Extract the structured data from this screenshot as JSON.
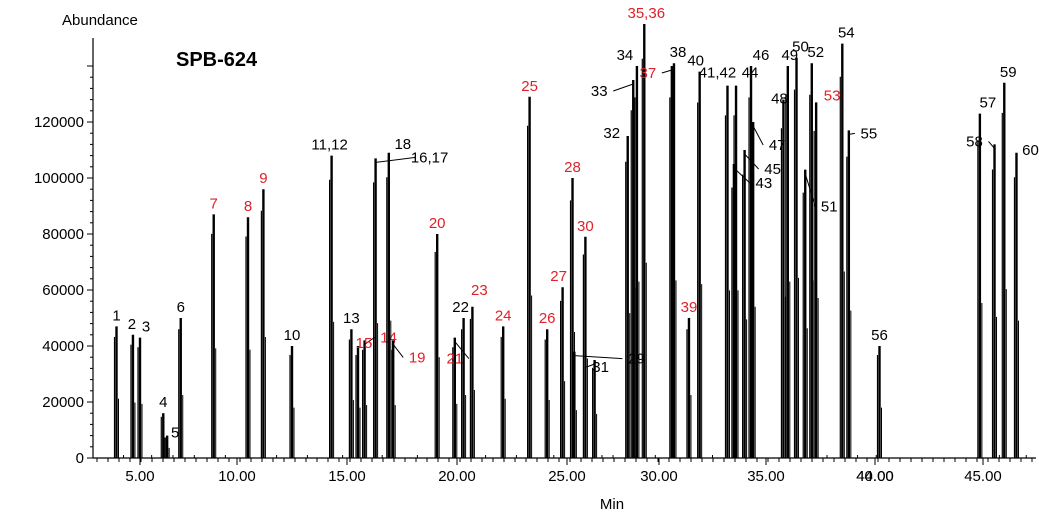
{
  "chart_data": {
    "type": "line",
    "title": "SPB-624",
    "ylabel": "Abundance",
    "xlabel": "Min",
    "ylim": [
      0,
      140000
    ],
    "yticks": [
      0,
      20000,
      40000,
      60000,
      80000,
      100000,
      120000
    ],
    "xticks": [
      "5.00",
      "10.00",
      "15.00",
      "20.00",
      "25.00",
      "30.00",
      "35.00",
      "40.00",
      "44.00",
      "45.00"
    ],
    "grid": false,
    "highlight_color": "#e0202a",
    "base_color": "#000000",
    "peaks": [
      {
        "label": "1",
        "x": 4.0,
        "y": 47000,
        "red": false
      },
      {
        "label": "2",
        "x": 4.7,
        "y": 44000,
        "red": false
      },
      {
        "label": "3",
        "x": 5.0,
        "y": 43000,
        "red": false
      },
      {
        "label": "4",
        "x": 6.2,
        "y": 16000,
        "red": false
      },
      {
        "label": "5",
        "x": 6.4,
        "y": 8000,
        "red": false
      },
      {
        "label": "6",
        "x": 7.1,
        "y": 50000,
        "red": false
      },
      {
        "label": "7",
        "x": 8.8,
        "y": 87000,
        "red": true
      },
      {
        "label": "8",
        "x": 10.5,
        "y": 86000,
        "red": true
      },
      {
        "label": "9",
        "x": 11.2,
        "y": 96000,
        "red": true
      },
      {
        "label": "10",
        "x": 12.5,
        "y": 40000,
        "red": false
      },
      {
        "label": "11,12",
        "x": 14.3,
        "y": 108000,
        "red": false
      },
      {
        "label": "13",
        "x": 15.2,
        "y": 46000,
        "red": false
      },
      {
        "label": "14",
        "x": 15.8,
        "y": 42000,
        "red": true
      },
      {
        "label": "15",
        "x": 15.5,
        "y": 40000,
        "red": true
      },
      {
        "label": "16,17",
        "x": 16.3,
        "y": 107000,
        "red": false
      },
      {
        "label": "18",
        "x": 16.9,
        "y": 109000,
        "red": false
      },
      {
        "label": "19",
        "x": 17.1,
        "y": 42000,
        "red": true
      },
      {
        "label": "20",
        "x": 19.1,
        "y": 80000,
        "red": true
      },
      {
        "label": "21",
        "x": 19.9,
        "y": 43000,
        "red": true
      },
      {
        "label": "22",
        "x": 20.3,
        "y": 50000,
        "red": false
      },
      {
        "label": "23",
        "x": 20.7,
        "y": 54000,
        "red": true
      },
      {
        "label": "24",
        "x": 22.1,
        "y": 47000,
        "red": true
      },
      {
        "label": "25",
        "x": 23.3,
        "y": 129000,
        "red": true
      },
      {
        "label": "26",
        "x": 24.1,
        "y": 46000,
        "red": true
      },
      {
        "label": "27",
        "x": 24.8,
        "y": 61000,
        "red": true
      },
      {
        "label": "28",
        "x": 25.3,
        "y": 100000,
        "red": true
      },
      {
        "label": "29",
        "x": 25.4,
        "y": 38000,
        "red": false
      },
      {
        "label": "30",
        "x": 26.0,
        "y": 79000,
        "red": true
      },
      {
        "label": "31",
        "x": 26.5,
        "y": 35000,
        "red": false
      },
      {
        "label": "32",
        "x": 28.3,
        "y": 115000,
        "red": false
      },
      {
        "label": "33",
        "x": 28.6,
        "y": 135000,
        "red": false
      },
      {
        "label": "34",
        "x": 28.8,
        "y": 140000,
        "red": false
      },
      {
        "label": "35,36",
        "x": 29.2,
        "y": 155000,
        "red": true
      },
      {
        "label": "37",
        "x": 30.6,
        "y": 140000,
        "red": true
      },
      {
        "label": "38",
        "x": 30.7,
        "y": 141000,
        "red": false
      },
      {
        "label": "39",
        "x": 31.4,
        "y": 50000,
        "red": true
      },
      {
        "label": "40",
        "x": 31.9,
        "y": 138000,
        "red": false
      },
      {
        "label": "41,42",
        "x": 33.2,
        "y": 133000,
        "red": false
      },
      {
        "label": "43",
        "x": 33.5,
        "y": 105000,
        "red": false
      },
      {
        "label": "44",
        "x": 33.6,
        "y": 133000,
        "red": false
      },
      {
        "label": "45",
        "x": 34.0,
        "y": 110000,
        "red": false
      },
      {
        "label": "46",
        "x": 34.3,
        "y": 140000,
        "red": false
      },
      {
        "label": "47",
        "x": 34.4,
        "y": 120000,
        "red": false
      },
      {
        "label": "48",
        "x": 35.8,
        "y": 128000,
        "red": false
      },
      {
        "label": "49",
        "x": 36.0,
        "y": 140000,
        "red": false
      },
      {
        "label": "50",
        "x": 36.4,
        "y": 143000,
        "red": false
      },
      {
        "label": "51",
        "x": 36.8,
        "y": 103000,
        "red": false
      },
      {
        "label": "52",
        "x": 37.1,
        "y": 141000,
        "red": false
      },
      {
        "label": "53",
        "x": 37.3,
        "y": 127000,
        "red": true
      },
      {
        "label": "54",
        "x": 38.5,
        "y": 148000,
        "red": false
      },
      {
        "label": "55",
        "x": 38.8,
        "y": 117000,
        "red": false
      },
      {
        "label": "56",
        "x": 43.6,
        "y": 40000,
        "red": false
      },
      {
        "label": "57",
        "x": 45.2,
        "y": 123000,
        "red": false
      },
      {
        "label": "58",
        "x": 45.8,
        "y": 112000,
        "red": false
      },
      {
        "label": "59",
        "x": 46.2,
        "y": 134000,
        "red": false
      },
      {
        "label": "60",
        "x": 46.7,
        "y": 109000,
        "red": false
      }
    ]
  }
}
